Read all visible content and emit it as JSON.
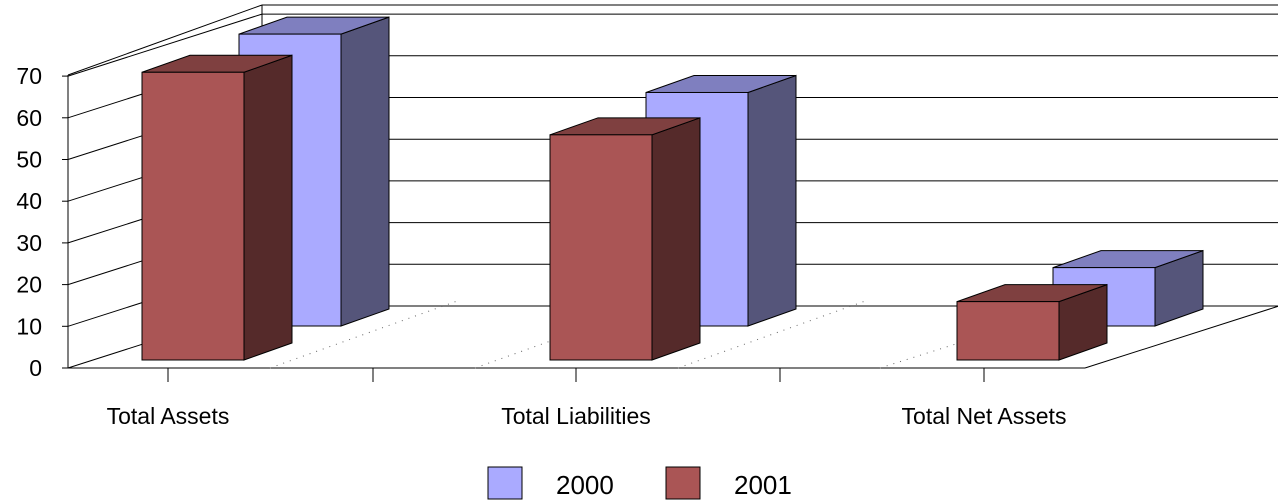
{
  "chart_data": {
    "type": "bar",
    "style": "3d-clustered",
    "categories": [
      "Total Assets",
      "Total Liabilities",
      "Total Net Assets"
    ],
    "series": [
      {
        "name": "2000",
        "values": [
          70,
          56,
          14
        ],
        "color": "#aaaaff",
        "side_color": "#55557a",
        "top_color": "#7f7fbf"
      },
      {
        "name": "2001",
        "values": [
          69,
          54,
          14
        ],
        "color": "#aa5555",
        "side_color": "#552a2a",
        "top_color": "#7f4040"
      }
    ],
    "ylim": [
      0,
      70
    ],
    "yticks": [
      "0",
      "10",
      "20",
      "30",
      "40",
      "50",
      "60",
      "70"
    ],
    "grid": true,
    "legend_position": "bottom",
    "title": "",
    "xlabel": "",
    "ylabel": ""
  }
}
